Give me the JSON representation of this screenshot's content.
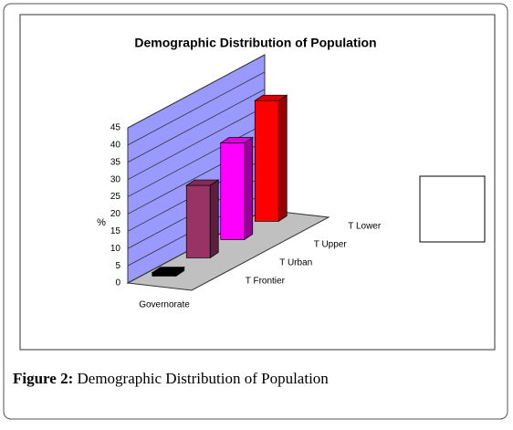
{
  "chart_data": {
    "type": "bar3d",
    "title": "Demographic Distribution of Population",
    "ylabel": "%",
    "categories": [
      "Governorate"
    ],
    "series": [
      {
        "name": "T Frontier",
        "color": "#000000",
        "values": [
          1
        ]
      },
      {
        "name": "T Urban",
        "color": "#993366",
        "values": [
          21
        ]
      },
      {
        "name": "T Upper",
        "color": "#ff00ff",
        "values": [
          28
        ]
      },
      {
        "name": "T Lower",
        "color": "#ff0000",
        "values": [
          35
        ]
      }
    ],
    "ylim": [
      0,
      45
    ],
    "yticks": [
      0,
      5,
      10,
      15,
      20,
      25,
      30,
      35,
      40,
      45
    ],
    "grid": true,
    "legend": "right"
  },
  "caption": {
    "label": "Figure 2:",
    "text": "Demographic Distribution of Population"
  }
}
